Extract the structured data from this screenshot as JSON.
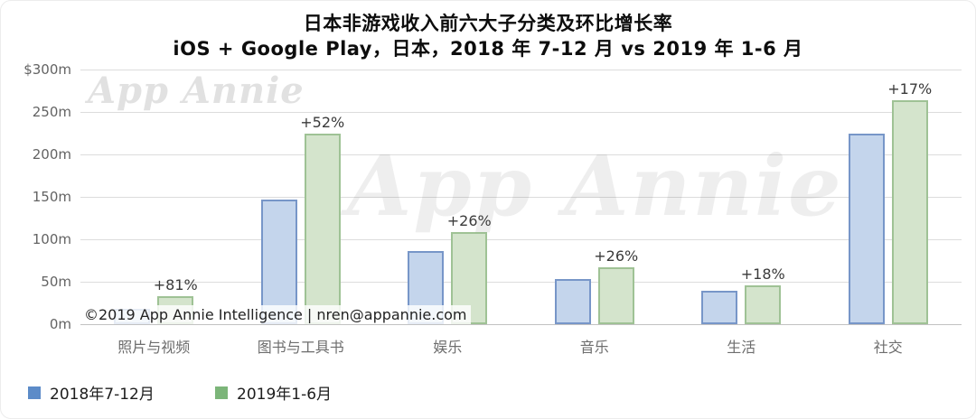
{
  "header": {
    "title": "日本非游戏收入前六大子分类及环比增长率",
    "subtitle": "iOS + Google Play，日本，2018 年 7-12 月 vs 2019 年 1-6 月"
  },
  "watermarks": {
    "corner": "App Annie",
    "center": "App Annie"
  },
  "footer": {
    "copyright": "©2019 App Annie Intelligence | nren@appannie.com"
  },
  "colors": {
    "bar_2018_fill": "#c4d5ec",
    "bar_2018_stroke": "#7796c8",
    "bar_2019_fill": "#d4e4cc",
    "bar_2019_stroke": "#9fc295",
    "legend_2018": "#5c8bc8",
    "legend_2019": "#7cb579",
    "gridline": "#dcdcdc",
    "axis_text": "#636363"
  },
  "chart_data": {
    "type": "bar",
    "title": "日本非游戏收入前六大子分类及环比增长率",
    "subtitle": "iOS + Google Play，日本，2018 年 7-12 月 vs 2019 年 1-6 月",
    "unit": "$m (USD millions)",
    "categories": [
      "照片与视频",
      "图书与工具书",
      "娱乐",
      "音乐",
      "生活",
      "社交"
    ],
    "series": [
      {
        "name": "2018年7-12月",
        "key": "2018h2",
        "values": [
          18,
          147,
          86,
          53,
          39,
          225
        ],
        "fill": "#c4d5ec",
        "stroke": "#7796c8",
        "legend_color": "#5c8bc8"
      },
      {
        "name": "2019年1-6月",
        "key": "2019h1",
        "values": [
          33,
          224,
          108,
          67,
          46,
          264
        ],
        "fill": "#d4e4cc",
        "stroke": "#9fc295",
        "legend_color": "#7cb579"
      }
    ],
    "growth_labels": [
      "+81%",
      "+52%",
      "+26%",
      "+26%",
      "+18%",
      "+17%"
    ],
    "ylim": [
      0,
      300
    ],
    "yticks": [
      {
        "label": "$300m",
        "value": 300
      },
      {
        "label": "250m",
        "value": 250
      },
      {
        "label": "200m",
        "value": 200
      },
      {
        "label": "150m",
        "value": 150
      },
      {
        "label": "100m",
        "value": 100
      },
      {
        "label": "50m",
        "value": 50
      },
      {
        "label": "0m",
        "value": 0
      }
    ],
    "grid": true,
    "legend_position": "bottom-left"
  }
}
